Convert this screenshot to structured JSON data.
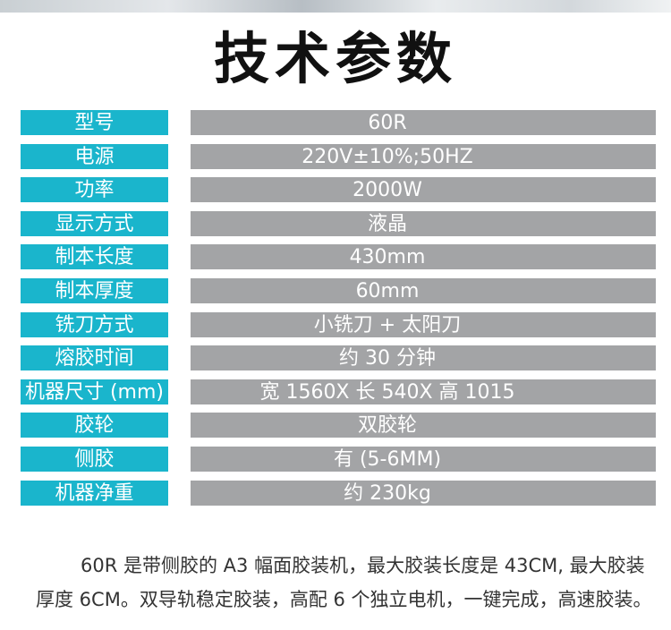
{
  "title": "技术参数",
  "specs": [
    {
      "label": "型号",
      "value": "60R"
    },
    {
      "label": "电源",
      "value": "220V±10%;50HZ"
    },
    {
      "label": "功率",
      "value": "2000W"
    },
    {
      "label": "显示方式",
      "value": "液晶"
    },
    {
      "label": "制本长度",
      "value": "430mm"
    },
    {
      "label": "制本厚度",
      "value": "60mm"
    },
    {
      "label": "铣刀方式",
      "value": "小铣刀 + 太阳刀"
    },
    {
      "label": "熔胶时间",
      "value": "约 30 分钟"
    },
    {
      "label": "机器尺寸 (mm)",
      "value": "宽 1560X 长 540X 高 1015"
    },
    {
      "label": "胶轮",
      "value": "双胶轮"
    },
    {
      "label": "侧胶",
      "value": "有 (5-6MM)"
    },
    {
      "label": "机器净重",
      "value": "约 230kg"
    }
  ],
  "description": "60R 是带侧胶的 A3 幅面胶装机，最大胶装长度是 43CM, 最大胶装厚度 6CM。双导轨稳定胶装，高配 6 个独立电机，一键完成，高速胶装。",
  "colors": {
    "label_bg": "#1ab5cc",
    "value_bg": "#a3a4a6"
  }
}
